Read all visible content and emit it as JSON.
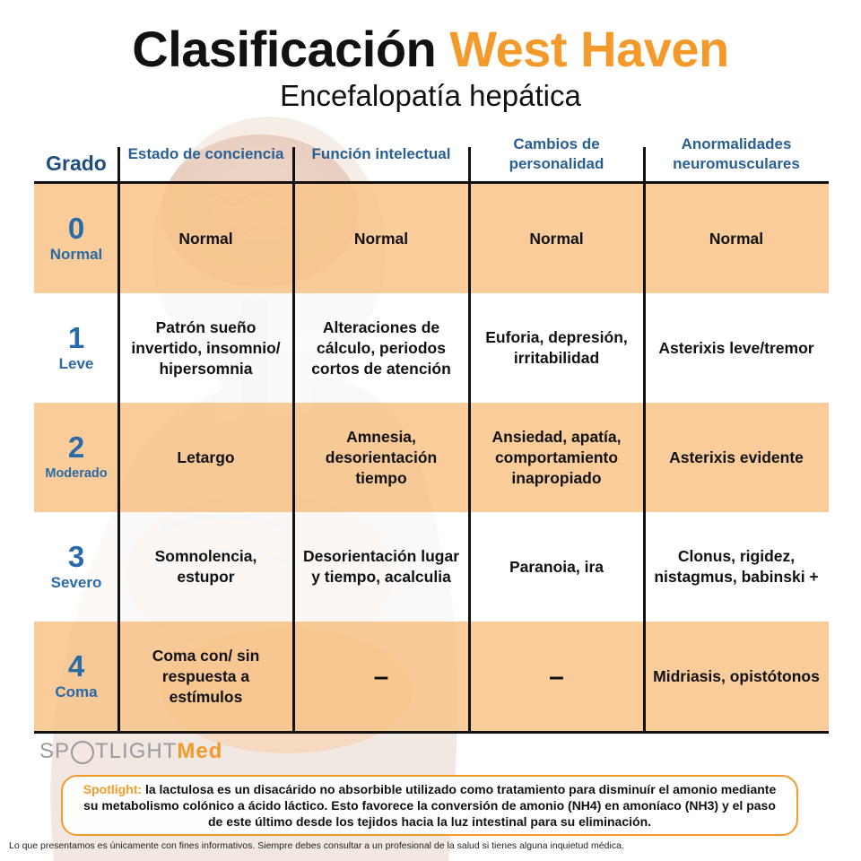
{
  "header": {
    "title_main": "Clasificación",
    "title_accent": "West Haven",
    "subtitle": "Encefalopatía hepática"
  },
  "table": {
    "grade_header": "Grado",
    "columns": [
      "Estado de conciencia",
      "Función intelectual",
      "Cambios de personalidad",
      "Anormalidades neuromusculares"
    ],
    "rows": [
      {
        "grade": "0",
        "label": "Normal",
        "cells": [
          "Normal",
          "Normal",
          "Normal",
          "Normal"
        ]
      },
      {
        "grade": "1",
        "label": "Leve",
        "cells": [
          "Patrón sueño invertido, insomnio/ hipersomnia",
          "Alteraciones de cálculo, periodos cortos de atención",
          "Euforia, depresión, irritabilidad",
          "Asterixis leve/tremor"
        ]
      },
      {
        "grade": "2",
        "label": "Moderado",
        "cells": [
          "Letargo",
          "Amnesia, desorientación tiempo",
          "Ansiedad, apatía, comportamiento inapropiado",
          "Asterixis evidente"
        ]
      },
      {
        "grade": "3",
        "label": "Severo",
        "cells": [
          "Somnolencia, estupor",
          "Desorientación lugar y tiempo, acalculia",
          "Paranoia, ira",
          "Clonus, rigidez, nistagmus, babinski +"
        ]
      },
      {
        "grade": "4",
        "label": "Coma",
        "cells": [
          "Coma con/ sin respuesta a estímulos",
          "–",
          "–",
          "Midriasis, opistótonos"
        ]
      }
    ]
  },
  "brand": {
    "logo_part1": "SP",
    "logo_part2": "TLIGHT",
    "logo_accent": "Med"
  },
  "spotlight": {
    "label": "Spotlight:",
    "text": "la lactulosa es un disacárido no absorbible utilizado como tratamiento para disminuír el amonio mediante su metabolismo colónico a ácido láctico. Esto favorece la conversión de amonio (NH4) en amoníaco (NH3) y el paso de este último desde los tejidos hacia la luz intestinal para su eliminación."
  },
  "disclaimer": "Lo que presentamos es únicamente con fines informativos. Siempre debes consultar a un profesional de la salud si tienes alguna inquietud médica.",
  "colors": {
    "accent_orange": "#f39a2b",
    "row_orange": "#f8c489",
    "header_blue": "#2a5f94",
    "grade_blue": "#2a6aa6"
  }
}
